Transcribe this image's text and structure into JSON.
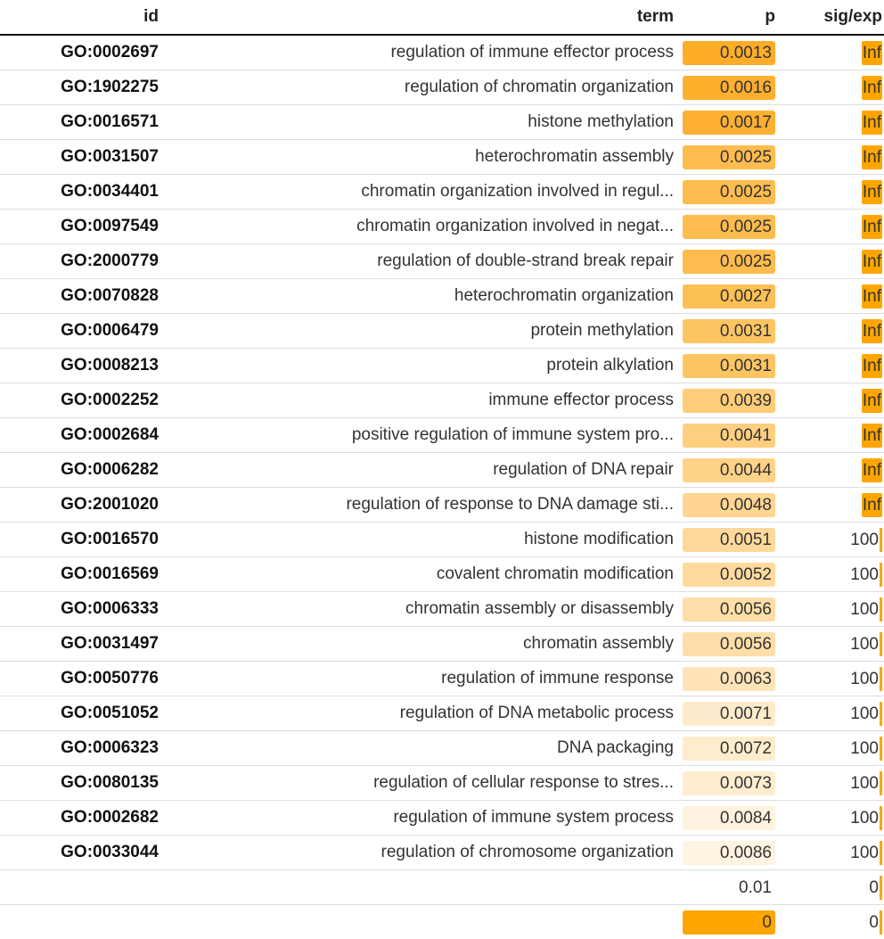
{
  "headers": {
    "id": "id",
    "term": "term",
    "p": "p",
    "sig": "sig/exp"
  },
  "accent": "#ffa500",
  "rows": [
    {
      "id": "GO:0002697",
      "term": "regulation of immune effector process",
      "p": "0.0013",
      "sig": "Inf",
      "fill": 1.0,
      "color": "#fdad28",
      "sig_type": "inf"
    },
    {
      "id": "GO:1902275",
      "term": "regulation of chromatin organization",
      "p": "0.0016",
      "sig": "Inf",
      "fill": 1.0,
      "color": "#fdaf2e",
      "sig_type": "inf"
    },
    {
      "id": "GO:0016571",
      "term": "histone methylation",
      "p": "0.0017",
      "sig": "Inf",
      "fill": 1.0,
      "color": "#fdb032",
      "sig_type": "inf"
    },
    {
      "id": "GO:0031507",
      "term": "heterochromatin assembly",
      "p": "0.0025",
      "sig": "Inf",
      "fill": 1.0,
      "color": "#fdbc4d",
      "sig_type": "inf"
    },
    {
      "id": "GO:0034401",
      "term": "chromatin organization involved in regul...",
      "p": "0.0025",
      "sig": "Inf",
      "fill": 1.0,
      "color": "#fdbc4d",
      "sig_type": "inf"
    },
    {
      "id": "GO:0097549",
      "term": "chromatin organization involved in negat...",
      "p": "0.0025",
      "sig": "Inf",
      "fill": 1.0,
      "color": "#fdbc4d",
      "sig_type": "inf"
    },
    {
      "id": "GO:2000779",
      "term": "regulation of double-strand break repair",
      "p": "0.0025",
      "sig": "Inf",
      "fill": 1.0,
      "color": "#fdbc4d",
      "sig_type": "inf"
    },
    {
      "id": "GO:0070828",
      "term": "heterochromatin organization",
      "p": "0.0027",
      "sig": "Inf",
      "fill": 1.0,
      "color": "#fdc055",
      "sig_type": "inf"
    },
    {
      "id": "GO:0006479",
      "term": "protein methylation",
      "p": "0.0031",
      "sig": "Inf",
      "fill": 1.0,
      "color": "#fdc562",
      "sig_type": "inf"
    },
    {
      "id": "GO:0008213",
      "term": "protein alkylation",
      "p": "0.0031",
      "sig": "Inf",
      "fill": 1.0,
      "color": "#fdc562",
      "sig_type": "inf"
    },
    {
      "id": "GO:0002252",
      "term": "immune effector process",
      "p": "0.0039",
      "sig": "Inf",
      "fill": 1.0,
      "color": "#fecd79",
      "sig_type": "inf"
    },
    {
      "id": "GO:0002684",
      "term": "positive regulation of immune system pro...",
      "p": "0.0041",
      "sig": "Inf",
      "fill": 1.0,
      "color": "#fecf7f",
      "sig_type": "inf"
    },
    {
      "id": "GO:0006282",
      "term": "regulation of DNA repair",
      "p": "0.0044",
      "sig": "Inf",
      "fill": 1.0,
      "color": "#fed287",
      "sig_type": "inf"
    },
    {
      "id": "GO:2001020",
      "term": "regulation of response to DNA damage sti...",
      "p": "0.0048",
      "sig": "Inf",
      "fill": 1.0,
      "color": "#fed692",
      "sig_type": "inf"
    },
    {
      "id": "GO:0016570",
      "term": "histone modification",
      "p": "0.0051",
      "sig": "100",
      "fill": 1.0,
      "color": "#fed99a",
      "sig_type": "bar"
    },
    {
      "id": "GO:0016569",
      "term": "covalent chromatin modification",
      "p": "0.0052",
      "sig": "100",
      "fill": 1.0,
      "color": "#feda9d",
      "sig_type": "bar"
    },
    {
      "id": "GO:0006333",
      "term": "chromatin assembly or disassembly",
      "p": "0.0056",
      "sig": "100",
      "fill": 1.0,
      "color": "#fedea8",
      "sig_type": "bar"
    },
    {
      "id": "GO:0031497",
      "term": "chromatin assembly",
      "p": "0.0056",
      "sig": "100",
      "fill": 1.0,
      "color": "#fedea8",
      "sig_type": "bar"
    },
    {
      "id": "GO:0050776",
      "term": "regulation of immune response",
      "p": "0.0063",
      "sig": "100",
      "fill": 1.0,
      "color": "#fee4b8",
      "sig_type": "bar"
    },
    {
      "id": "GO:0051052",
      "term": "regulation of DNA metabolic process",
      "p": "0.0071",
      "sig": "100",
      "fill": 1.0,
      "color": "#feebcb",
      "sig_type": "bar"
    },
    {
      "id": "GO:0006323",
      "term": "DNA packaging",
      "p": "0.0072",
      "sig": "100",
      "fill": 1.0,
      "color": "#feeccd",
      "sig_type": "bar"
    },
    {
      "id": "GO:0080135",
      "term": "regulation of cellular response to stres...",
      "p": "0.0073",
      "sig": "100",
      "fill": 1.0,
      "color": "#feedd0",
      "sig_type": "bar"
    },
    {
      "id": "GO:0002682",
      "term": "regulation of immune system process",
      "p": "0.0084",
      "sig": "100",
      "fill": 1.0,
      "color": "#fff2de",
      "sig_type": "bar"
    },
    {
      "id": "GO:0033044",
      "term": "regulation of chromosome organization",
      "p": "0.0086",
      "sig": "100",
      "fill": 1.0,
      "color": "#fff3e1",
      "sig_type": "bar"
    },
    {
      "id": "",
      "term": "",
      "p": "0.01",
      "sig": "0",
      "fill": 0.0,
      "color": "#ffffff",
      "sig_type": "bar"
    },
    {
      "id": "",
      "term": "",
      "p": "0",
      "sig": "0",
      "fill": 1.0,
      "color": "#ffa500",
      "sig_type": "bar"
    }
  ]
}
